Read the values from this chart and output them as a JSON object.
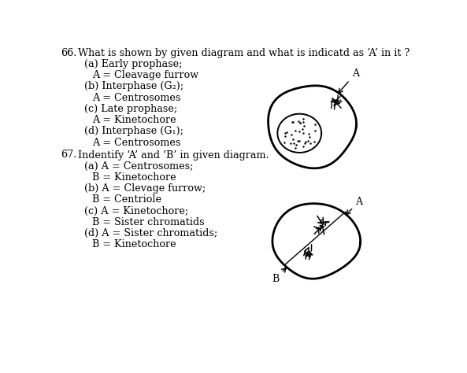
{
  "bg_color": "#ffffff",
  "q66_num": "66.",
  "q66_q": "What is shown by given diagram and what is indicatd as ‘A’ in it ?",
  "q66_opts": [
    "(a) Early prophase;",
    "A = Cleavage furrow",
    "(b) Interphase (G₂);",
    "A = Centrosomes",
    "(c) Late prophase;",
    "A = Kinetochore",
    "(d) Interphase (G₁);",
    "A = Centrosomes"
  ],
  "q67_num": "67.",
  "q67_q": "Indentify ‘A’ and ‘B’ in given diagram.",
  "q67_opts": [
    "(a) A = Centrosomes;",
    "B = Kinetochore",
    "(b) A = Clevage furrow;",
    "B = Centriole",
    "(c) A = Kinetochore;",
    "B = Sister chromatids",
    "(d) A = Sister chromatids;",
    "B = Kinetochore"
  ]
}
